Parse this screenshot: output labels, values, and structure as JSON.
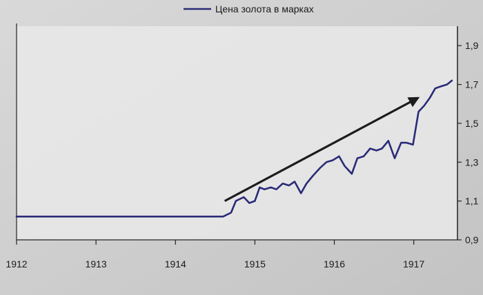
{
  "chart_data": {
    "type": "line",
    "legend": {
      "label": "Цена золота в марках",
      "placement": "top-center"
    },
    "x_ticks": [
      "1912",
      "1913",
      "1914",
      "1915",
      "1916",
      "1917"
    ],
    "xlim": [
      1912,
      1917.55
    ],
    "y_ticks": [
      "0,9",
      "1,1",
      "1,3",
      "1,5",
      "1,7",
      "1,9"
    ],
    "ylim": [
      0.9,
      2.0
    ],
    "grid": false,
    "y_axis_position": "right",
    "series": [
      {
        "name": "Цена золота в марках",
        "color": "#2a2a78",
        "x": [
          1912.0,
          1914.6,
          1914.7,
          1914.76,
          1914.86,
          1914.93,
          1915.0,
          1915.06,
          1915.12,
          1915.2,
          1915.27,
          1915.35,
          1915.43,
          1915.5,
          1915.58,
          1915.65,
          1915.73,
          1915.82,
          1915.9,
          1915.98,
          1916.06,
          1916.13,
          1916.22,
          1916.29,
          1916.37,
          1916.45,
          1916.53,
          1916.6,
          1916.68,
          1916.76,
          1916.84,
          1916.91,
          1916.99,
          1917.06,
          1917.13,
          1917.2,
          1917.27,
          1917.34,
          1917.42,
          1917.48
        ],
        "y": [
          1.02,
          1.02,
          1.04,
          1.1,
          1.12,
          1.09,
          1.1,
          1.17,
          1.16,
          1.17,
          1.16,
          1.19,
          1.18,
          1.2,
          1.14,
          1.19,
          1.23,
          1.27,
          1.3,
          1.31,
          1.33,
          1.28,
          1.24,
          1.32,
          1.33,
          1.37,
          1.36,
          1.37,
          1.41,
          1.32,
          1.4,
          1.4,
          1.39,
          1.56,
          1.59,
          1.63,
          1.68,
          1.69,
          1.7,
          1.72
        ]
      }
    ],
    "annotations": [
      {
        "type": "arrow",
        "from": {
          "x": 1914.62,
          "y": 1.1
        },
        "to": {
          "x": 1917.05,
          "y": 1.63
        },
        "color": "#1c1c1c"
      }
    ]
  }
}
